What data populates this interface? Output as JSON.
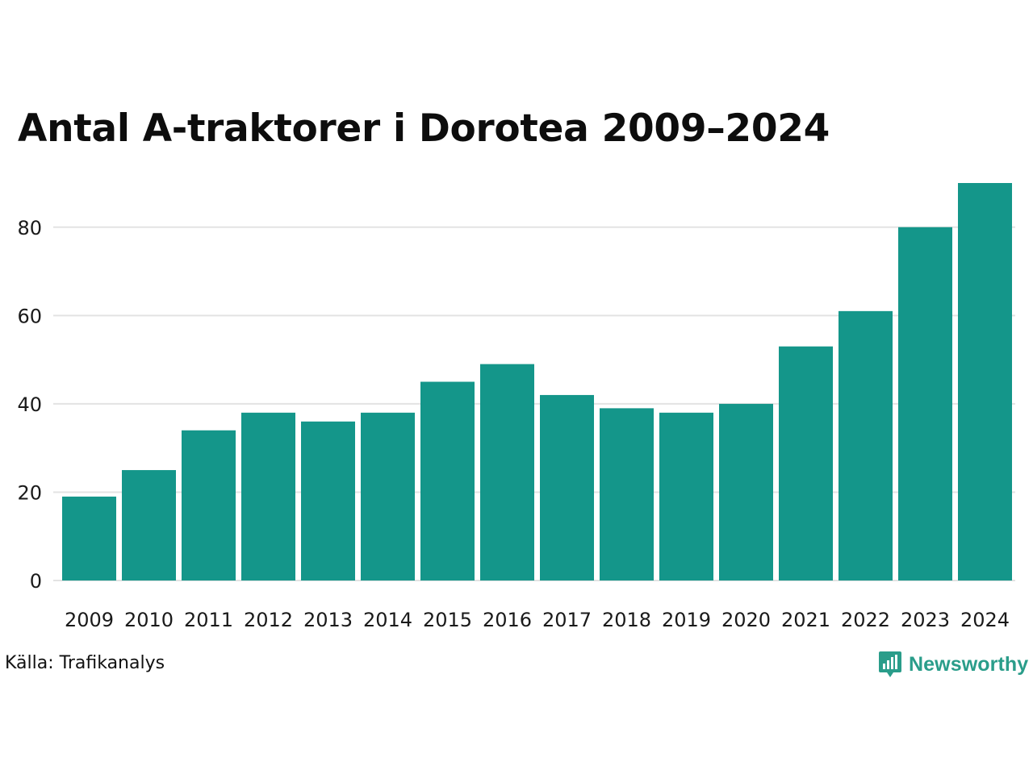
{
  "chart_data": {
    "type": "bar",
    "title": "Antal A-traktorer i Dorotea 2009–2024",
    "xlabel": "",
    "ylabel": "",
    "categories": [
      "2009",
      "2010",
      "2011",
      "2012",
      "2013",
      "2014",
      "2015",
      "2016",
      "2017",
      "2018",
      "2019",
      "2020",
      "2021",
      "2022",
      "2023",
      "2024"
    ],
    "values": [
      19,
      25,
      34,
      38,
      36,
      38,
      45,
      49,
      42,
      39,
      38,
      40,
      53,
      61,
      80,
      90
    ],
    "ylim": [
      0,
      90
    ],
    "yticks": [
      0,
      20,
      40,
      60,
      80
    ],
    "grid": true,
    "bar_color": "#14968a",
    "grid_color": "#e3e3e3"
  },
  "footer": {
    "source": "Källa: Trafikanalys",
    "brand": "Newsworthy",
    "brand_color": "#2a9d8a",
    "brand_icon": "bar-chart-speech-bubble-icon"
  }
}
